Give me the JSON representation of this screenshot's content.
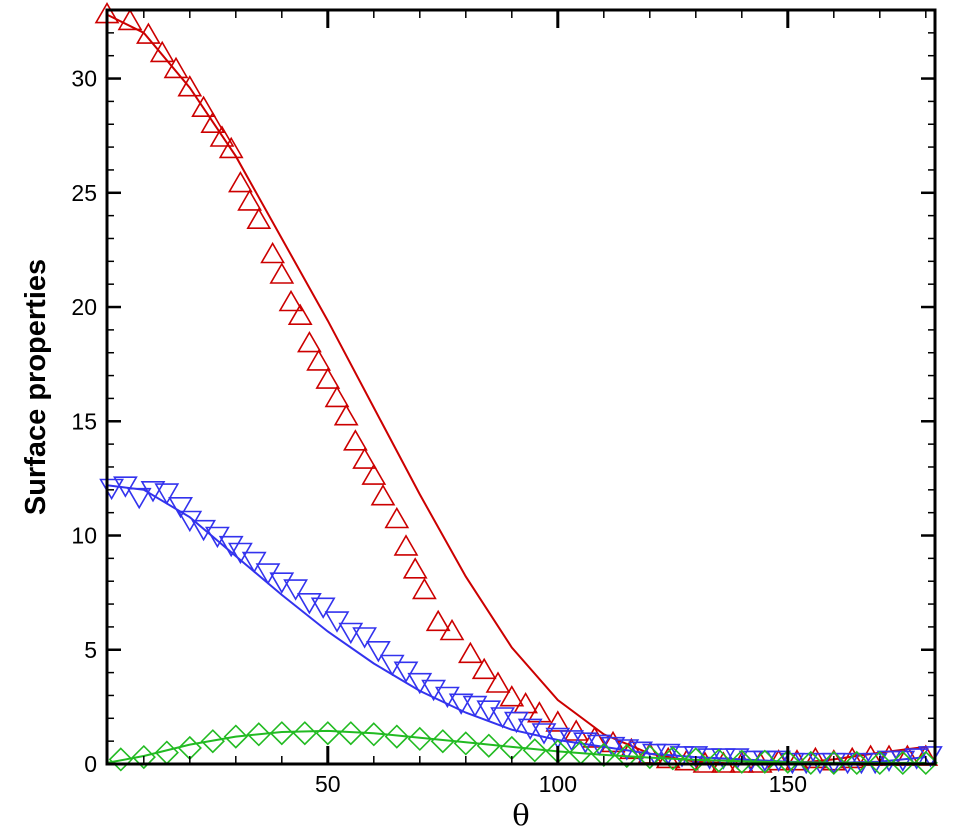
{
  "chart_data": {
    "type": "line",
    "title": "",
    "xlabel": "θ",
    "ylabel": "Surface properties",
    "xlim": [
      2,
      182
    ],
    "ylim": [
      0,
      33
    ],
    "x_ticks": [
      50,
      100,
      150
    ],
    "y_ticks": [
      0,
      5,
      10,
      15,
      20,
      25,
      30
    ],
    "grid": false,
    "legend": "none",
    "series": [
      {
        "color": "#cc0000",
        "marker": "triangle-up",
        "line": [
          [
            2,
            32.8
          ],
          [
            10,
            32.0
          ],
          [
            20,
            29.6
          ],
          [
            30,
            26.6
          ],
          [
            40,
            23.0
          ],
          [
            50,
            19.4
          ],
          [
            60,
            15.6
          ],
          [
            70,
            11.8
          ],
          [
            80,
            8.2
          ],
          [
            90,
            5.1
          ],
          [
            100,
            2.8
          ],
          [
            110,
            1.3
          ],
          [
            120,
            0.45
          ],
          [
            130,
            0.1
          ],
          [
            140,
            0.0
          ],
          [
            150,
            0.0
          ],
          [
            160,
            0.2
          ],
          [
            170,
            0.5
          ],
          [
            180,
            0.75
          ]
        ],
        "markers": [
          [
            2,
            32.8
          ],
          [
            7,
            32.5
          ],
          [
            11,
            31.9
          ],
          [
            14,
            31.1
          ],
          [
            17,
            30.4
          ],
          [
            20,
            29.6
          ],
          [
            23,
            28.7
          ],
          [
            25,
            28.0
          ],
          [
            27,
            27.4
          ],
          [
            29,
            26.9
          ],
          [
            31,
            25.4
          ],
          [
            33,
            24.6
          ],
          [
            35,
            23.8
          ],
          [
            38,
            22.3
          ],
          [
            40,
            21.4
          ],
          [
            42,
            20.2
          ],
          [
            44,
            19.6
          ],
          [
            46,
            18.4
          ],
          [
            48,
            17.6
          ],
          [
            50,
            16.8
          ],
          [
            52,
            16.0
          ],
          [
            54,
            15.2
          ],
          [
            56,
            14.1
          ],
          [
            58,
            13.3
          ],
          [
            60,
            12.6
          ],
          [
            62,
            11.7
          ],
          [
            65,
            10.7
          ],
          [
            67,
            9.5
          ],
          [
            69,
            8.5
          ],
          [
            71,
            7.6
          ],
          [
            74,
            6.2
          ],
          [
            77,
            5.8
          ],
          [
            81,
            4.8
          ],
          [
            84,
            4.1
          ],
          [
            87,
            3.5
          ],
          [
            90,
            2.9
          ],
          [
            93,
            2.6
          ],
          [
            96,
            2.2
          ],
          [
            100,
            1.8
          ],
          [
            104,
            1.4
          ],
          [
            108,
            1.1
          ],
          [
            112,
            0.9
          ],
          [
            116,
            0.6
          ],
          [
            120,
            0.4
          ],
          [
            124,
            0.2
          ],
          [
            128,
            0.1
          ],
          [
            132,
            0.0
          ],
          [
            136,
            0.0
          ],
          [
            140,
            0.0
          ],
          [
            144,
            0.0
          ],
          [
            148,
            0.1
          ],
          [
            152,
            0.1
          ],
          [
            156,
            0.2
          ],
          [
            160,
            0.1
          ],
          [
            164,
            0.2
          ],
          [
            168,
            0.3
          ],
          [
            172,
            0.3
          ],
          [
            176,
            0.3
          ],
          [
            180,
            0.3
          ]
        ]
      },
      {
        "color": "#3333ee",
        "marker": "triangle-down",
        "line": [
          [
            2,
            12.2
          ],
          [
            10,
            12.0
          ],
          [
            20,
            10.8
          ],
          [
            30,
            9.1
          ],
          [
            40,
            7.4
          ],
          [
            50,
            5.8
          ],
          [
            60,
            4.4
          ],
          [
            70,
            3.2
          ],
          [
            80,
            2.25
          ],
          [
            90,
            1.5
          ],
          [
            100,
            1.05
          ],
          [
            110,
            0.75
          ],
          [
            120,
            0.45
          ],
          [
            130,
            0.3
          ],
          [
            140,
            0.2
          ],
          [
            150,
            0.1
          ],
          [
            160,
            0.05
          ],
          [
            170,
            0.1
          ],
          [
            180,
            0.3
          ]
        ],
        "markers": [
          [
            3,
            12.1
          ],
          [
            6,
            12.2
          ],
          [
            9,
            11.7
          ],
          [
            12,
            12.0
          ],
          [
            15,
            11.9
          ],
          [
            18,
            11.3
          ],
          [
            20,
            10.7
          ],
          [
            23,
            10.3
          ],
          [
            26,
            10.0
          ],
          [
            29,
            9.6
          ],
          [
            31,
            9.3
          ],
          [
            34,
            8.9
          ],
          [
            37,
            8.4
          ],
          [
            40,
            8.0
          ],
          [
            43,
            7.7
          ],
          [
            46,
            7.1
          ],
          [
            49,
            6.9
          ],
          [
            52,
            6.3
          ],
          [
            55,
            5.8
          ],
          [
            58,
            5.6
          ],
          [
            61,
            5.0
          ],
          [
            64,
            4.4
          ],
          [
            67,
            4.1
          ],
          [
            70,
            3.6
          ],
          [
            73,
            3.3
          ],
          [
            76,
            3.0
          ],
          [
            79,
            2.7
          ],
          [
            82,
            2.6
          ],
          [
            85,
            2.4
          ],
          [
            88,
            2.1
          ],
          [
            91,
            1.9
          ],
          [
            94,
            1.6
          ],
          [
            97,
            1.4
          ],
          [
            100,
            1.2
          ],
          [
            103,
            1.1
          ],
          [
            106,
            1.0
          ],
          [
            109,
            0.9
          ],
          [
            112,
            0.8
          ],
          [
            115,
            0.7
          ],
          [
            118,
            0.6
          ],
          [
            121,
            0.5
          ],
          [
            124,
            0.5
          ],
          [
            127,
            0.4
          ],
          [
            130,
            0.4
          ],
          [
            133,
            0.3
          ],
          [
            136,
            0.3
          ],
          [
            139,
            0.3
          ],
          [
            142,
            0.2
          ],
          [
            145,
            0.2
          ],
          [
            148,
            0.2
          ],
          [
            151,
            0.1
          ],
          [
            154,
            0.1
          ],
          [
            157,
            0.1
          ],
          [
            160,
            0.1
          ],
          [
            163,
            0.1
          ],
          [
            166,
            0.1
          ],
          [
            169,
            0.1
          ],
          [
            172,
            0.2
          ],
          [
            175,
            0.2
          ],
          [
            178,
            0.3
          ],
          [
            181,
            0.4
          ]
        ]
      },
      {
        "color": "#22bb22",
        "marker": "diamond",
        "line": [
          [
            2,
            0.05
          ],
          [
            10,
            0.35
          ],
          [
            20,
            0.85
          ],
          [
            30,
            1.2
          ],
          [
            40,
            1.4
          ],
          [
            50,
            1.45
          ],
          [
            60,
            1.35
          ],
          [
            70,
            1.15
          ],
          [
            80,
            0.95
          ],
          [
            90,
            0.75
          ],
          [
            100,
            0.55
          ],
          [
            110,
            0.4
          ],
          [
            120,
            0.28
          ],
          [
            130,
            0.18
          ],
          [
            140,
            0.12
          ],
          [
            150,
            0.08
          ],
          [
            160,
            0.05
          ],
          [
            170,
            0.05
          ],
          [
            180,
            0.05
          ]
        ],
        "markers": [
          [
            5,
            0.2
          ],
          [
            10,
            0.3
          ],
          [
            15,
            0.5
          ],
          [
            20,
            0.7
          ],
          [
            25,
            1.0
          ],
          [
            30,
            1.2
          ],
          [
            35,
            1.3
          ],
          [
            40,
            1.35
          ],
          [
            45,
            1.35
          ],
          [
            50,
            1.35
          ],
          [
            55,
            1.35
          ],
          [
            60,
            1.3
          ],
          [
            65,
            1.2
          ],
          [
            70,
            1.1
          ],
          [
            75,
            1.0
          ],
          [
            80,
            0.9
          ],
          [
            85,
            0.8
          ],
          [
            90,
            0.7
          ],
          [
            95,
            0.6
          ],
          [
            100,
            0.55
          ],
          [
            105,
            0.5
          ],
          [
            110,
            0.4
          ],
          [
            115,
            0.35
          ],
          [
            120,
            0.3
          ],
          [
            125,
            0.25
          ],
          [
            130,
            0.2
          ],
          [
            135,
            0.15
          ],
          [
            140,
            0.1
          ],
          [
            145,
            0.1
          ],
          [
            150,
            0.1
          ],
          [
            155,
            0.05
          ],
          [
            160,
            0.05
          ],
          [
            165,
            0.05
          ],
          [
            170,
            0.05
          ],
          [
            175,
            0.05
          ],
          [
            180,
            0.05
          ]
        ]
      }
    ]
  }
}
